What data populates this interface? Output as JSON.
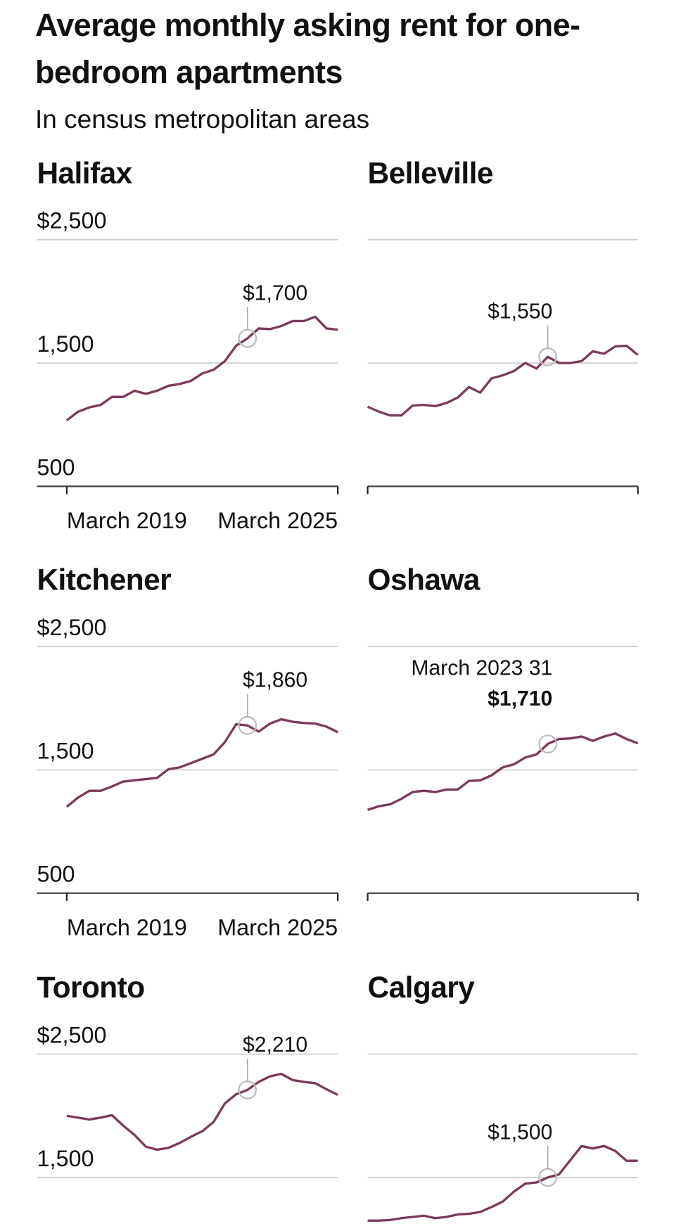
{
  "title": "Average monthly asking rent for one-bedroom apartments",
  "subtitle": "In census metropolitan areas",
  "chart_data": [
    {
      "type": "line",
      "title": "Halifax",
      "color": "#7b3a5c",
      "grid": true,
      "show_tick_labels": true,
      "ylim": [
        500,
        2500
      ],
      "yticks": [
        500,
        {
          "value": 1500,
          "label": "1,500"
        },
        {
          "value": 2500,
          "label": "$2,500"
        }
      ],
      "categories": [
        "March 2019",
        null,
        null,
        null,
        null,
        null,
        null,
        null,
        null,
        null,
        null,
        null,
        null,
        null,
        null,
        null,
        null,
        null,
        null,
        null,
        null,
        null,
        null,
        null,
        "March 2025"
      ],
      "values": [
        1035,
        1105,
        1140,
        1160,
        1225,
        1225,
        1275,
        1250,
        1275,
        1315,
        1330,
        1355,
        1415,
        1445,
        1515,
        1640,
        1700,
        1780,
        1775,
        1800,
        1840,
        1840,
        1875,
        1780,
        1770
      ],
      "value_labels": [
        null,
        null,
        null,
        null,
        null,
        null,
        null,
        null,
        null,
        null,
        null,
        null,
        null,
        null,
        null,
        null,
        "$1,700",
        null,
        null,
        null,
        null,
        null,
        null,
        null,
        null
      ]
    },
    {
      "type": "line",
      "title": "Belleville",
      "color": "#7b3a5c",
      "grid": true,
      "show_tick_labels": false,
      "ylim": [
        500,
        2500
      ],
      "yticks": [
        500,
        1500,
        2500
      ],
      "categories": [
        null,
        null,
        null,
        null,
        null,
        null,
        null,
        null,
        null,
        null,
        null,
        null,
        null,
        null,
        null,
        null,
        null,
        null,
        null,
        null,
        null,
        null,
        null,
        null,
        null
      ],
      "values": [
        1145,
        1105,
        1075,
        1075,
        1155,
        1160,
        1150,
        1175,
        1220,
        1305,
        1260,
        1375,
        1400,
        1435,
        1500,
        1455,
        1550,
        1500,
        1500,
        1515,
        1595,
        1575,
        1635,
        1640,
        1565
      ],
      "value_labels": [
        null,
        null,
        null,
        null,
        null,
        null,
        null,
        null,
        null,
        null,
        null,
        null,
        null,
        null,
        null,
        null,
        "$1,550",
        null,
        null,
        null,
        null,
        null,
        null,
        null,
        null
      ]
    },
    {
      "type": "line",
      "title": "Kitchener",
      "color": "#7b3a5c",
      "grid": true,
      "show_tick_labels": true,
      "ylim": [
        500,
        2500
      ],
      "yticks": [
        500,
        {
          "value": 1500,
          "label": "1,500"
        },
        {
          "value": 2500,
          "label": "$2,500"
        }
      ],
      "categories": [
        "March 2019",
        null,
        null,
        null,
        null,
        null,
        null,
        null,
        null,
        null,
        null,
        null,
        null,
        null,
        null,
        null,
        null,
        null,
        null,
        null,
        null,
        null,
        null,
        null,
        "March 2025"
      ],
      "values": [
        1200,
        1275,
        1330,
        1330,
        1365,
        1405,
        1415,
        1425,
        1435,
        1505,
        1520,
        1555,
        1590,
        1625,
        1725,
        1870,
        1860,
        1810,
        1875,
        1910,
        1890,
        1880,
        1875,
        1850,
        1805
      ],
      "value_labels": [
        null,
        null,
        null,
        null,
        null,
        null,
        null,
        null,
        null,
        null,
        null,
        null,
        null,
        null,
        null,
        null,
        "$1,860",
        null,
        null,
        null,
        null,
        null,
        null,
        null,
        null
      ]
    },
    {
      "type": "line",
      "title": "Oshawa",
      "color": "#7b3a5c",
      "grid": true,
      "show_tick_labels": false,
      "ylim": [
        500,
        2500
      ],
      "yticks": [
        500,
        1500,
        2500
      ],
      "categories": [
        null,
        null,
        null,
        null,
        null,
        null,
        null,
        null,
        null,
        null,
        null,
        null,
        null,
        null,
        null,
        null,
        null,
        null,
        null,
        null,
        null,
        null,
        null,
        null,
        null
      ],
      "values": [
        1175,
        1205,
        1220,
        1265,
        1320,
        1330,
        1320,
        1340,
        1340,
        1410,
        1415,
        1455,
        1520,
        1545,
        1600,
        1625,
        1710,
        1750,
        1755,
        1770,
        1735,
        1770,
        1795,
        1750,
        1715
      ],
      "annotation": "March 2023 31",
      "value_labels": [
        null,
        null,
        null,
        null,
        null,
        null,
        null,
        null,
        null,
        null,
        null,
        null,
        null,
        null,
        null,
        null,
        "$1,710",
        null,
        null,
        null,
        null,
        null,
        null,
        null,
        null
      ]
    },
    {
      "type": "line",
      "title": "Toronto",
      "color": "#7b3a5c",
      "grid": true,
      "show_tick_labels": true,
      "ylim": [
        500,
        2500
      ],
      "yticks": [
        {
          "value": 1500,
          "label": "1,500"
        },
        {
          "value": 2500,
          "label": "$2,500"
        }
      ],
      "categories": [
        null,
        null,
        null,
        null,
        null,
        null,
        null,
        null,
        null,
        null,
        null,
        null,
        null,
        null,
        null,
        null,
        null,
        null,
        null,
        null,
        null,
        null,
        null,
        null,
        null
      ],
      "values": [
        2000,
        1985,
        1970,
        1985,
        2005,
        1920,
        1845,
        1750,
        1725,
        1740,
        1780,
        1830,
        1875,
        1950,
        2100,
        2175,
        2210,
        2275,
        2320,
        2340,
        2290,
        2275,
        2265,
        2215,
        2170
      ],
      "value_labels": [
        null,
        null,
        null,
        null,
        null,
        null,
        null,
        null,
        null,
        null,
        null,
        null,
        null,
        null,
        null,
        null,
        "$2,210",
        null,
        null,
        null,
        null,
        null,
        null,
        null,
        null
      ]
    },
    {
      "type": "line",
      "title": "Calgary",
      "color": "#7b3a5c",
      "grid": true,
      "show_tick_labels": false,
      "ylim": [
        500,
        2500
      ],
      "yticks": [
        1500,
        2500
      ],
      "categories": [
        null,
        null,
        null,
        null,
        null,
        null,
        null,
        null,
        null,
        null,
        null,
        null,
        null,
        null,
        null,
        null,
        null,
        null,
        null,
        null,
        null,
        null,
        null,
        null,
        null
      ],
      "values": [
        1150,
        1150,
        1155,
        1170,
        1180,
        1190,
        1170,
        1180,
        1200,
        1205,
        1220,
        1260,
        1305,
        1385,
        1450,
        1460,
        1500,
        1525,
        1640,
        1755,
        1735,
        1755,
        1715,
        1635,
        1635
      ],
      "value_labels": [
        null,
        null,
        null,
        null,
        null,
        null,
        null,
        null,
        null,
        null,
        null,
        null,
        null,
        null,
        null,
        null,
        "$1,500",
        null,
        null,
        null,
        null,
        null,
        null,
        null,
        null
      ]
    }
  ]
}
